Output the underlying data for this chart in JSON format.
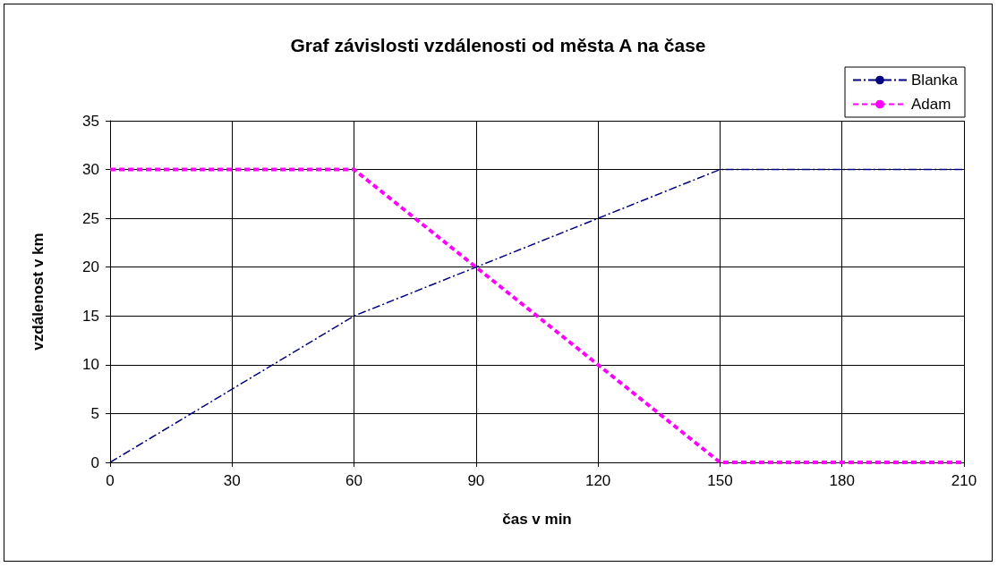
{
  "chart_data": {
    "type": "line",
    "title": "Graf závislosti vzdálenosti od města A na čase",
    "xlabel": "čas v min",
    "ylabel": "vzdálenost v km",
    "x": [
      0,
      30,
      60,
      90,
      120,
      150,
      180,
      210
    ],
    "series": [
      {
        "name": "Blanka",
        "color": "#000080",
        "line_style": "dashdot",
        "values": [
          0,
          7.5,
          15,
          20,
          25,
          30,
          30,
          30
        ]
      },
      {
        "name": "Adam",
        "color": "#ff00ff",
        "line_style": "dashed",
        "values": [
          30,
          30,
          30,
          20,
          10,
          0,
          0,
          0
        ]
      }
    ],
    "xlim": [
      0,
      210
    ],
    "xticks": [
      0,
      30,
      60,
      90,
      120,
      150,
      180,
      210
    ],
    "ylim": [
      0,
      35
    ],
    "yticks": [
      0,
      5,
      10,
      15,
      20,
      25,
      30,
      35
    ],
    "grid": true,
    "legend": "top right",
    "marker": "none"
  }
}
